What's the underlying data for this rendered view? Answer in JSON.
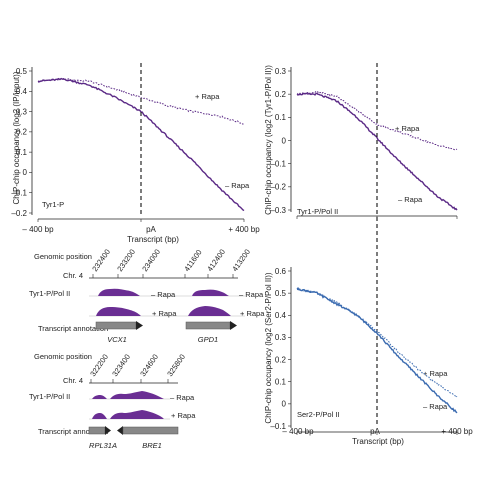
{
  "colors": {
    "purple": "#5b2a86",
    "purple_fill": "#6a2e93",
    "blue": "#3b6bb0",
    "dashed_line": "#111111",
    "arrow_gray": "#777777"
  },
  "common": {
    "x_tick_labels": [
      "– 400 bp",
      "pA",
      "+ 400 bp"
    ],
    "x_axis_label": "Transcript (bp)",
    "x_axis_label_alt": "Transcript (bp)"
  },
  "chart_data": [
    {
      "id": "top-left",
      "type": "line",
      "ylabel": "ChIP-chip occupancy (log2 (IP/input))",
      "ylim": [
        -0.2,
        0.5
      ],
      "yticks": [
        "–0.2",
        "–0.1",
        "0",
        "0.1",
        "0.2",
        "0.3",
        "0.4",
        "0.5"
      ],
      "xlabel": "Transcript (bp)",
      "xlim": [
        -400,
        400
      ],
      "corner_label": "Tyr1-P",
      "series": [
        {
          "name": "+ Rapa",
          "style": "dotted",
          "x": [
            -400,
            -300,
            -200,
            -100,
            0,
            100,
            200,
            300,
            400
          ],
          "y": [
            0.45,
            0.46,
            0.45,
            0.41,
            0.37,
            0.33,
            0.3,
            0.28,
            0.24
          ]
        },
        {
          "name": "– Rapa",
          "style": "solid",
          "x": [
            -400,
            -300,
            -200,
            -100,
            0,
            100,
            200,
            300,
            400
          ],
          "y": [
            0.45,
            0.46,
            0.43,
            0.37,
            0.3,
            0.18,
            0.06,
            -0.07,
            -0.19
          ]
        }
      ]
    },
    {
      "id": "top-right",
      "type": "line",
      "ylabel": "ChIP-chip occupancy (log2 (Tyr1-P/Pol II))",
      "ylim": [
        -0.3,
        0.3
      ],
      "yticks": [
        "–0.3",
        "–0.2",
        "–0.1",
        "0",
        "0.1",
        "0.2",
        "0.3"
      ],
      "xlim": [
        -400,
        400
      ],
      "corner_label": "Tyr1-P/Pol II",
      "series": [
        {
          "name": "+ Rapa",
          "style": "dotted",
          "x": [
            -400,
            -300,
            -200,
            -100,
            0,
            100,
            200,
            300,
            400
          ],
          "y": [
            0.2,
            0.21,
            0.19,
            0.13,
            0.07,
            0.04,
            0.01,
            -0.02,
            -0.04
          ]
        },
        {
          "name": "– Rapa",
          "style": "solid",
          "x": [
            -400,
            -300,
            -200,
            -100,
            0,
            100,
            200,
            300,
            400
          ],
          "y": [
            0.2,
            0.2,
            0.17,
            0.1,
            0.01,
            -0.08,
            -0.16,
            -0.24,
            -0.3
          ]
        }
      ]
    },
    {
      "id": "bottom-right",
      "type": "line",
      "ylabel": "ChIP-chip occupancy (log2 (Ser2-P/Pol II))",
      "ylim": [
        -0.1,
        0.6
      ],
      "yticks": [
        "–0.1",
        "0",
        "0.1",
        "0.2",
        "0.3",
        "0.4",
        "0.5",
        "0.6"
      ],
      "xlim": [
        -400,
        400
      ],
      "corner_label": "Ser2-P/Pol II",
      "series": [
        {
          "name": "+ Rapa",
          "style": "dotted",
          "x": [
            -400,
            -300,
            -200,
            -100,
            0,
            100,
            200,
            300,
            400
          ],
          "y": [
            0.52,
            0.5,
            0.46,
            0.4,
            0.33,
            0.24,
            0.16,
            0.09,
            0.03
          ]
        },
        {
          "name": "– Rapa",
          "style": "solid",
          "x": [
            -400,
            -300,
            -200,
            -100,
            0,
            100,
            200,
            300,
            400
          ],
          "y": [
            0.52,
            0.5,
            0.45,
            0.4,
            0.32,
            0.22,
            0.13,
            0.04,
            -0.04
          ]
        }
      ]
    }
  ],
  "tracks": [
    {
      "genomic_label": "Genomic position",
      "chr_label": "Chr. 4",
      "positions": [
        "232400",
        "233200",
        "234000",
        "411600",
        "412400",
        "413200"
      ],
      "track_label": "Tyr1-P/Pol II",
      "rapa_minus": "– Rapa",
      "rapa_plus": "+ Rapa",
      "annotation_label": "Transcript annotation",
      "genes": [
        "VCX1",
        "GPD1"
      ]
    },
    {
      "genomic_label": "Genomic position",
      "chr_label": "Chr. 4",
      "positions": [
        "322200",
        "323400",
        "324600",
        "325800"
      ],
      "track_label": "Tyr1-P/Pol II",
      "rapa_minus": "– Rapa",
      "rapa_plus": "+ Rapa",
      "annotation_label": "Transcript annotation",
      "genes": [
        "RPL31A",
        "BRE1"
      ]
    }
  ]
}
